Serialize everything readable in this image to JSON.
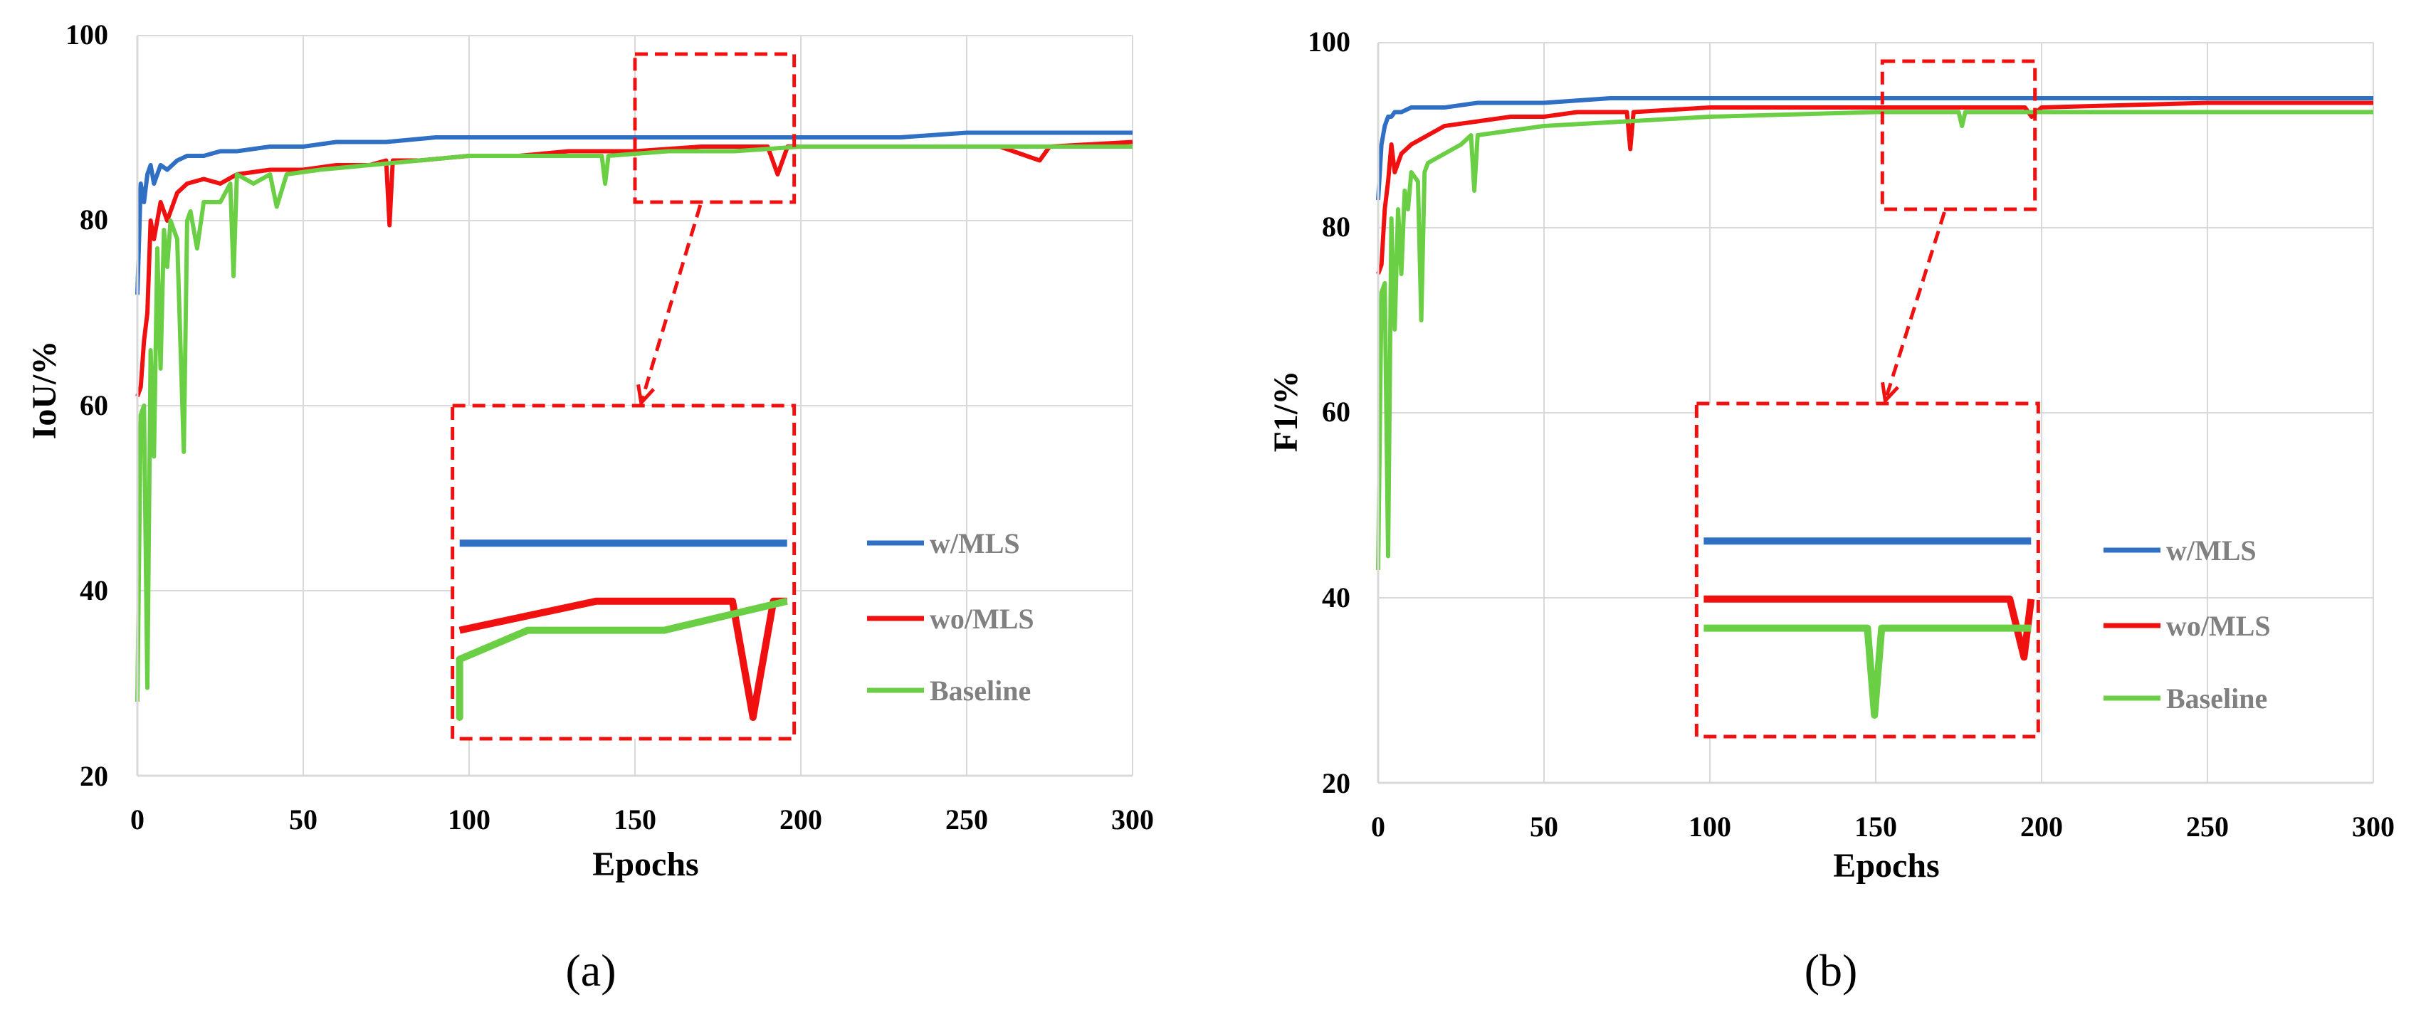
{
  "figure": {
    "panels": [
      "(a)",
      "(b)"
    ]
  },
  "colors": {
    "w_mls": "#2f6fc4",
    "wo_mls": "#f01010",
    "baseline": "#6bcf45",
    "zoom_box": "#f01010",
    "grid": "#d9d9d9"
  },
  "chart_data": [
    {
      "type": "line",
      "panel_label": "(a)",
      "title": "",
      "xlabel": "Epochs",
      "ylabel": "IoU/%",
      "xlim": [
        0,
        300
      ],
      "ylim": [
        20,
        100
      ],
      "xticks": [
        "0",
        "50",
        "100",
        "150",
        "200",
        "250",
        "300"
      ],
      "yticks": [
        "20",
        "40",
        "60",
        "80",
        "100"
      ],
      "grid": true,
      "legend": {
        "position": "right",
        "entries": [
          "w/MLS",
          "wo/MLS",
          "Baseline"
        ]
      },
      "zoom": {
        "source_x": [
          150,
          198
        ],
        "source_y": [
          82,
          98
        ],
        "inset_x": [
          95,
          198
        ],
        "inset_y": [
          24,
          60
        ],
        "inset_ylim": [
          86,
          91
        ]
      },
      "series": [
        {
          "name": "w/MLS",
          "color_key": "w_mls",
          "x": [
            0,
            1,
            2,
            3,
            4,
            5,
            7,
            9,
            12,
            15,
            20,
            25,
            30,
            40,
            50,
            60,
            75,
            90,
            100,
            110,
            125,
            140,
            150,
            160,
            175,
            190,
            200,
            215,
            230,
            250,
            270,
            285,
            300
          ],
          "values": [
            72,
            84,
            82,
            85,
            86,
            84,
            86,
            85.5,
            86.5,
            87,
            87,
            87.5,
            87.5,
            88,
            88,
            88.5,
            88.5,
            89,
            89,
            89,
            89,
            89,
            89,
            89,
            89,
            89,
            89,
            89,
            89,
            89.5,
            89.5,
            89.5,
            89.5
          ]
        },
        {
          "name": "wo/MLS",
          "color_key": "wo_mls",
          "x": [
            0,
            1,
            2,
            3,
            4,
            5,
            7,
            9,
            12,
            15,
            20,
            25,
            30,
            40,
            50,
            60,
            70,
            75,
            76,
            77,
            85,
            100,
            115,
            130,
            150,
            170,
            190,
            193,
            196,
            200,
            220,
            240,
            260,
            272,
            275,
            300
          ],
          "values": [
            61,
            62,
            67,
            70,
            80,
            78,
            82,
            80,
            83,
            84,
            84.5,
            84,
            85,
            85.5,
            85.5,
            86,
            86,
            86.5,
            79.5,
            86.5,
            86.5,
            87,
            87,
            87.5,
            87.5,
            88,
            88,
            85,
            88,
            88,
            88,
            88,
            88,
            86.5,
            88,
            88.5
          ]
        },
        {
          "name": "Baseline",
          "color_key": "baseline",
          "x": [
            0,
            1,
            2,
            3,
            4,
            5,
            6,
            7,
            8,
            9,
            10,
            12,
            14,
            15,
            16,
            18,
            20,
            25,
            28,
            29,
            30,
            35,
            40,
            42,
            45,
            55,
            70,
            85,
            100,
            120,
            140,
            141,
            142,
            160,
            180,
            200,
            220,
            240,
            260,
            280,
            300
          ],
          "values": [
            28,
            59,
            60,
            29.5,
            66,
            54.5,
            77,
            64,
            79,
            75,
            80,
            78,
            55,
            80,
            81,
            77,
            82,
            82,
            84,
            74,
            85,
            84,
            85,
            81.5,
            85,
            85.5,
            86,
            86.5,
            87,
            87,
            87,
            84,
            87,
            87.5,
            87.5,
            88,
            88,
            88,
            88,
            88,
            88
          ]
        }
      ]
    },
    {
      "type": "line",
      "panel_label": "(b)",
      "title": "",
      "xlabel": "Epochs",
      "ylabel": "F1/%",
      "xlim": [
        0,
        300
      ],
      "ylim": [
        20,
        100
      ],
      "xticks": [
        "0",
        "50",
        "100",
        "150",
        "200",
        "250",
        "300"
      ],
      "yticks": [
        "20",
        "40",
        "60",
        "80",
        "100"
      ],
      "grid": true,
      "legend": {
        "position": "right",
        "entries": [
          "w/MLS",
          "wo/MLS",
          "Baseline"
        ]
      },
      "zoom": {
        "source_x": [
          152,
          198
        ],
        "source_y": [
          82,
          98
        ],
        "inset_x": [
          96,
          199
        ],
        "inset_y": [
          25,
          61
        ],
        "inset_ylim": [
          91,
          96
        ]
      },
      "series": [
        {
          "name": "w/MLS",
          "color_key": "w_mls",
          "x": [
            0,
            1,
            2,
            3,
            4,
            5,
            7,
            10,
            15,
            20,
            30,
            40,
            50,
            70,
            100,
            150,
            200,
            250,
            300
          ],
          "values": [
            83,
            89,
            91,
            92,
            92,
            92.5,
            92.5,
            93,
            93,
            93,
            93.5,
            93.5,
            93.5,
            94,
            94,
            94,
            94,
            94,
            94
          ]
        },
        {
          "name": "wo/MLS",
          "color_key": "wo_mls",
          "x": [
            0,
            1,
            2,
            3,
            4,
            5,
            7,
            10,
            15,
            20,
            30,
            40,
            50,
            60,
            75,
            76,
            77,
            100,
            150,
            190,
            195,
            197,
            200,
            250,
            300
          ],
          "values": [
            75,
            76,
            82,
            85,
            89,
            86,
            88,
            89,
            90,
            91,
            91.5,
            92,
            92,
            92.5,
            92.5,
            88.5,
            92.5,
            93,
            93,
            93,
            93,
            92,
            93,
            93.5,
            93.5
          ]
        },
        {
          "name": "Baseline",
          "color_key": "baseline",
          "x": [
            0,
            1,
            2,
            3,
            4,
            5,
            6,
            7,
            8,
            9,
            10,
            12,
            13,
            14,
            15,
            20,
            25,
            28,
            29,
            30,
            40,
            50,
            75,
            100,
            150,
            175,
            176,
            177,
            200,
            250,
            300
          ],
          "values": [
            43,
            73,
            74,
            44.5,
            81,
            69,
            82,
            75,
            84,
            82,
            86,
            85,
            70,
            86,
            87,
            88,
            89,
            90,
            84,
            90,
            90.5,
            91,
            91.5,
            92,
            92.5,
            92.5,
            91,
            92.5,
            92.5,
            92.5,
            92.5
          ]
        }
      ]
    }
  ]
}
